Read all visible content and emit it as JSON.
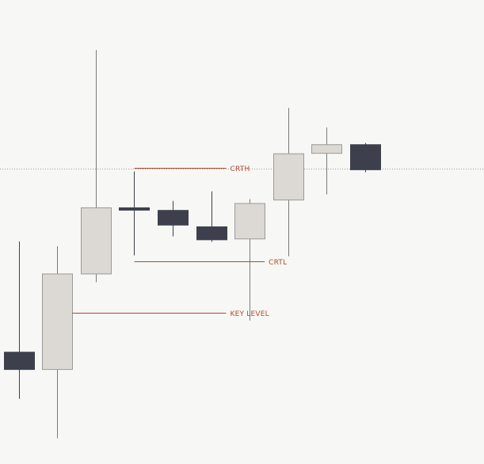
{
  "chart_data": {
    "type": "candlestick",
    "title": "",
    "xlabel": "",
    "ylabel": "",
    "ylim": [
      0,
      100
    ],
    "grid": false,
    "current_price_line": 64.6,
    "candles": [
      {
        "open": 22.2,
        "high": 47.8,
        "low": 11.4,
        "close": 18.2
      },
      {
        "open": 18.2,
        "high": 46.7,
        "low": 2.3,
        "close": 40.3
      },
      {
        "open": 40.3,
        "high": 92.1,
        "low": 38.4,
        "close": 55.6
      },
      {
        "open": 55.6,
        "high": 64.0,
        "low": 44.6,
        "close": 55.4
      },
      {
        "open": 55.0,
        "high": 57.2,
        "low": 49.0,
        "close": 51.6
      },
      {
        "open": 51.2,
        "high": 59.4,
        "low": 47.7,
        "close": 48.2
      },
      {
        "open": 48.4,
        "high": 57.6,
        "low": 29.5,
        "close": 56.6
      },
      {
        "open": 57.4,
        "high": 78.7,
        "low": 44.4,
        "close": 68.1
      },
      {
        "open": 68.2,
        "high": 74.2,
        "low": 58.7,
        "close": 70.2
      },
      {
        "open": 70.2,
        "high": 70.6,
        "low": 63.8,
        "close": 64.4
      }
    ],
    "annotations": [
      {
        "label": "CRTH",
        "value": 64.8,
        "from_candle": 3,
        "to_candle": 5
      },
      {
        "label": "CRTL",
        "value": 43.2,
        "from_candle": 3,
        "to_candle": 6
      },
      {
        "label": "KEY LEVEL",
        "value": 31.3,
        "from_candle": 1,
        "to_candle": 5
      }
    ],
    "colors": {
      "background": "#f7f7f5",
      "bull_body": "#dcd8d3",
      "bull_border": "#9a9a9a",
      "bear_body": "#3d404c",
      "wick": "#7a7a7a",
      "annotation": "#b24a2e",
      "price_line": "#9a9a9a"
    }
  }
}
